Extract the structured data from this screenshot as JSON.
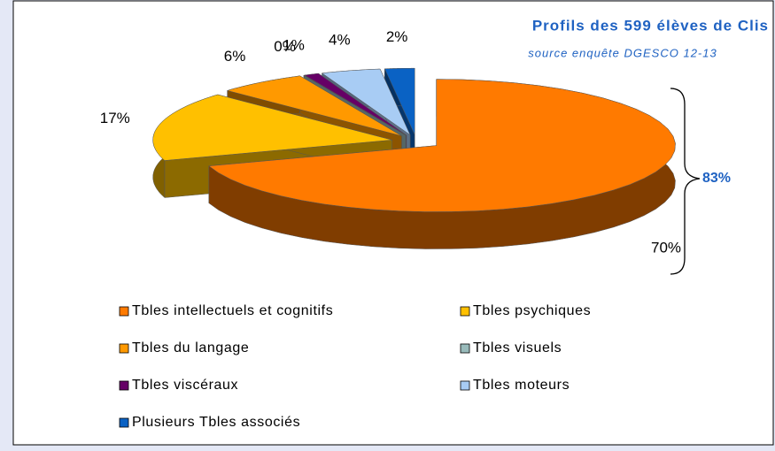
{
  "chart_data": {
    "type": "pie",
    "title": "Profils des 599 élèves  de Clis",
    "subtitle": "source enquête DGESCO 12-13",
    "categories": [
      "Tbles intellectuels et cognitifs",
      "Tbles psychiques",
      "Tbles du langage",
      "Tbles visuels",
      "Tbles viscéraux",
      "Tbles moteurs",
      "Plusieurs Tbles associés"
    ],
    "values": [
      70,
      17,
      6,
      0,
      1,
      4,
      2
    ],
    "value_labels": [
      "70%",
      "17%",
      "6%",
      "0%",
      "1%",
      "4%",
      "2%"
    ],
    "colors": [
      "#ff7a00",
      "#ffc000",
      "#ff9900",
      "#99bbbb",
      "#660066",
      "#a8ccf4",
      "#0a62c4"
    ],
    "annotation": "83%"
  }
}
